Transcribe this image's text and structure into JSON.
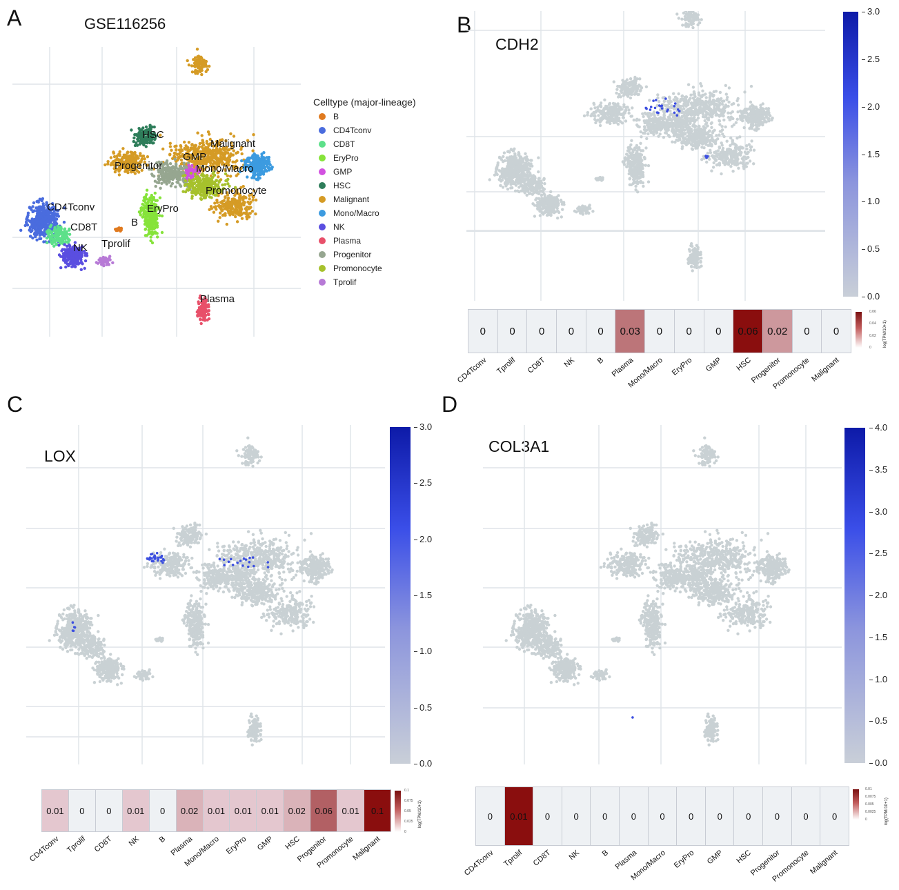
{
  "panels": {
    "A": {
      "letter": "A",
      "title": "GSE116256",
      "legend_title": "Celltype (major-lineage)",
      "legend": [
        {
          "label": "B",
          "color": "#e07a1f"
        },
        {
          "label": "CD4Tconv",
          "color": "#4a6cde"
        },
        {
          "label": "CD8T",
          "color": "#5de08a"
        },
        {
          "label": "EryPro",
          "color": "#86e33a"
        },
        {
          "label": "GMP",
          "color": "#d251e0"
        },
        {
          "label": "HSC",
          "color": "#2e7d5a"
        },
        {
          "label": "Malignant",
          "color": "#d59b25"
        },
        {
          "label": "Mono/Macro",
          "color": "#3c9be0"
        },
        {
          "label": "NK",
          "color": "#5a4ee0"
        },
        {
          "label": "Plasma",
          "color": "#e8506a"
        },
        {
          "label": "Progenitor",
          "color": "#96a690"
        },
        {
          "label": "Promonocyte",
          "color": "#a6c12c"
        },
        {
          "label": "Tprolif",
          "color": "#b77ad6"
        }
      ],
      "cluster_labels": [
        "HSC",
        "Malignant",
        "GMP",
        "Progenitor",
        "Mono/Macro",
        "Promonocyte",
        "CD4Tconv",
        "CD8T",
        "EryPro",
        "B",
        "NK",
        "Tprolif",
        "Plasma"
      ]
    },
    "B": {
      "letter": "B",
      "gene": "CDH2",
      "colorbar_ticks": [
        "3.0",
        "2.5",
        "2.0",
        "1.5",
        "1.0",
        "0.5",
        "0.0"
      ],
      "heatmap_values": [
        "0",
        "0",
        "0",
        "0",
        "0",
        "0.03",
        "0",
        "0",
        "0",
        "0.06",
        "0.02",
        "0",
        "0"
      ],
      "heatmap_levels": [
        0,
        0,
        0,
        0,
        0,
        0.5,
        0,
        0,
        0,
        1.0,
        0.33,
        0,
        0
      ],
      "categories": [
        "CD4Tconv",
        "Tprolif",
        "CD8T",
        "NK",
        "B",
        "Plasma",
        "Mono/Macro",
        "EryPro",
        "GMP",
        "HSC",
        "Progenitor",
        "Promonocyte",
        "Malignant"
      ],
      "mini_ticks": [
        "0.06",
        "0.04",
        "0.02",
        "0"
      ],
      "mini_title": "log(TPM/10+1)"
    },
    "C": {
      "letter": "C",
      "gene": "LOX",
      "colorbar_ticks": [
        "3.0",
        "2.5",
        "2.0",
        "1.5",
        "1.0",
        "0.5",
        "0.0"
      ],
      "heatmap_values": [
        "0.01",
        "0",
        "0",
        "0.01",
        "0",
        "0.02",
        "0.01",
        "0.01",
        "0.01",
        "0.02",
        "0.06",
        "0.01",
        "0.1"
      ],
      "heatmap_levels": [
        0.1,
        0,
        0,
        0.1,
        0,
        0.2,
        0.1,
        0.1,
        0.1,
        0.2,
        0.6,
        0.1,
        1.0
      ],
      "categories": [
        "CD4Tconv",
        "Tprolif",
        "CD8T",
        "NK",
        "B",
        "Plasma",
        "Mono/Macro",
        "EryPro",
        "GMP",
        "HSC",
        "Progenitor",
        "Promonocyte",
        "Malignant"
      ],
      "mini_ticks": [
        "0.1",
        "0.075",
        "0.05",
        "0.025",
        "0"
      ],
      "mini_title": "log(TPM/10+1)"
    },
    "D": {
      "letter": "D",
      "gene": "COL3A1",
      "colorbar_ticks": [
        "4.0",
        "3.5",
        "3.0",
        "2.5",
        "2.0",
        "1.5",
        "1.0",
        "0.5",
        "0.0"
      ],
      "heatmap_values": [
        "0",
        "0.01",
        "0",
        "0",
        "0",
        "0",
        "0",
        "0",
        "0",
        "0",
        "0",
        "0",
        "0"
      ],
      "heatmap_levels": [
        0,
        1.0,
        0,
        0,
        0,
        0,
        0,
        0,
        0,
        0,
        0,
        0,
        0
      ],
      "categories": [
        "CD4Tconv",
        "Tprolif",
        "CD8T",
        "NK",
        "B",
        "Plasma",
        "Mono/Macro",
        "EryPro",
        "GMP",
        "HSC",
        "Progenitor",
        "Promonocyte",
        "Malignant"
      ],
      "mini_ticks": [
        "0.01",
        "0.0075",
        "0.005",
        "0.0025",
        "0"
      ],
      "mini_title": "log(TPM/10+1)"
    }
  }
}
